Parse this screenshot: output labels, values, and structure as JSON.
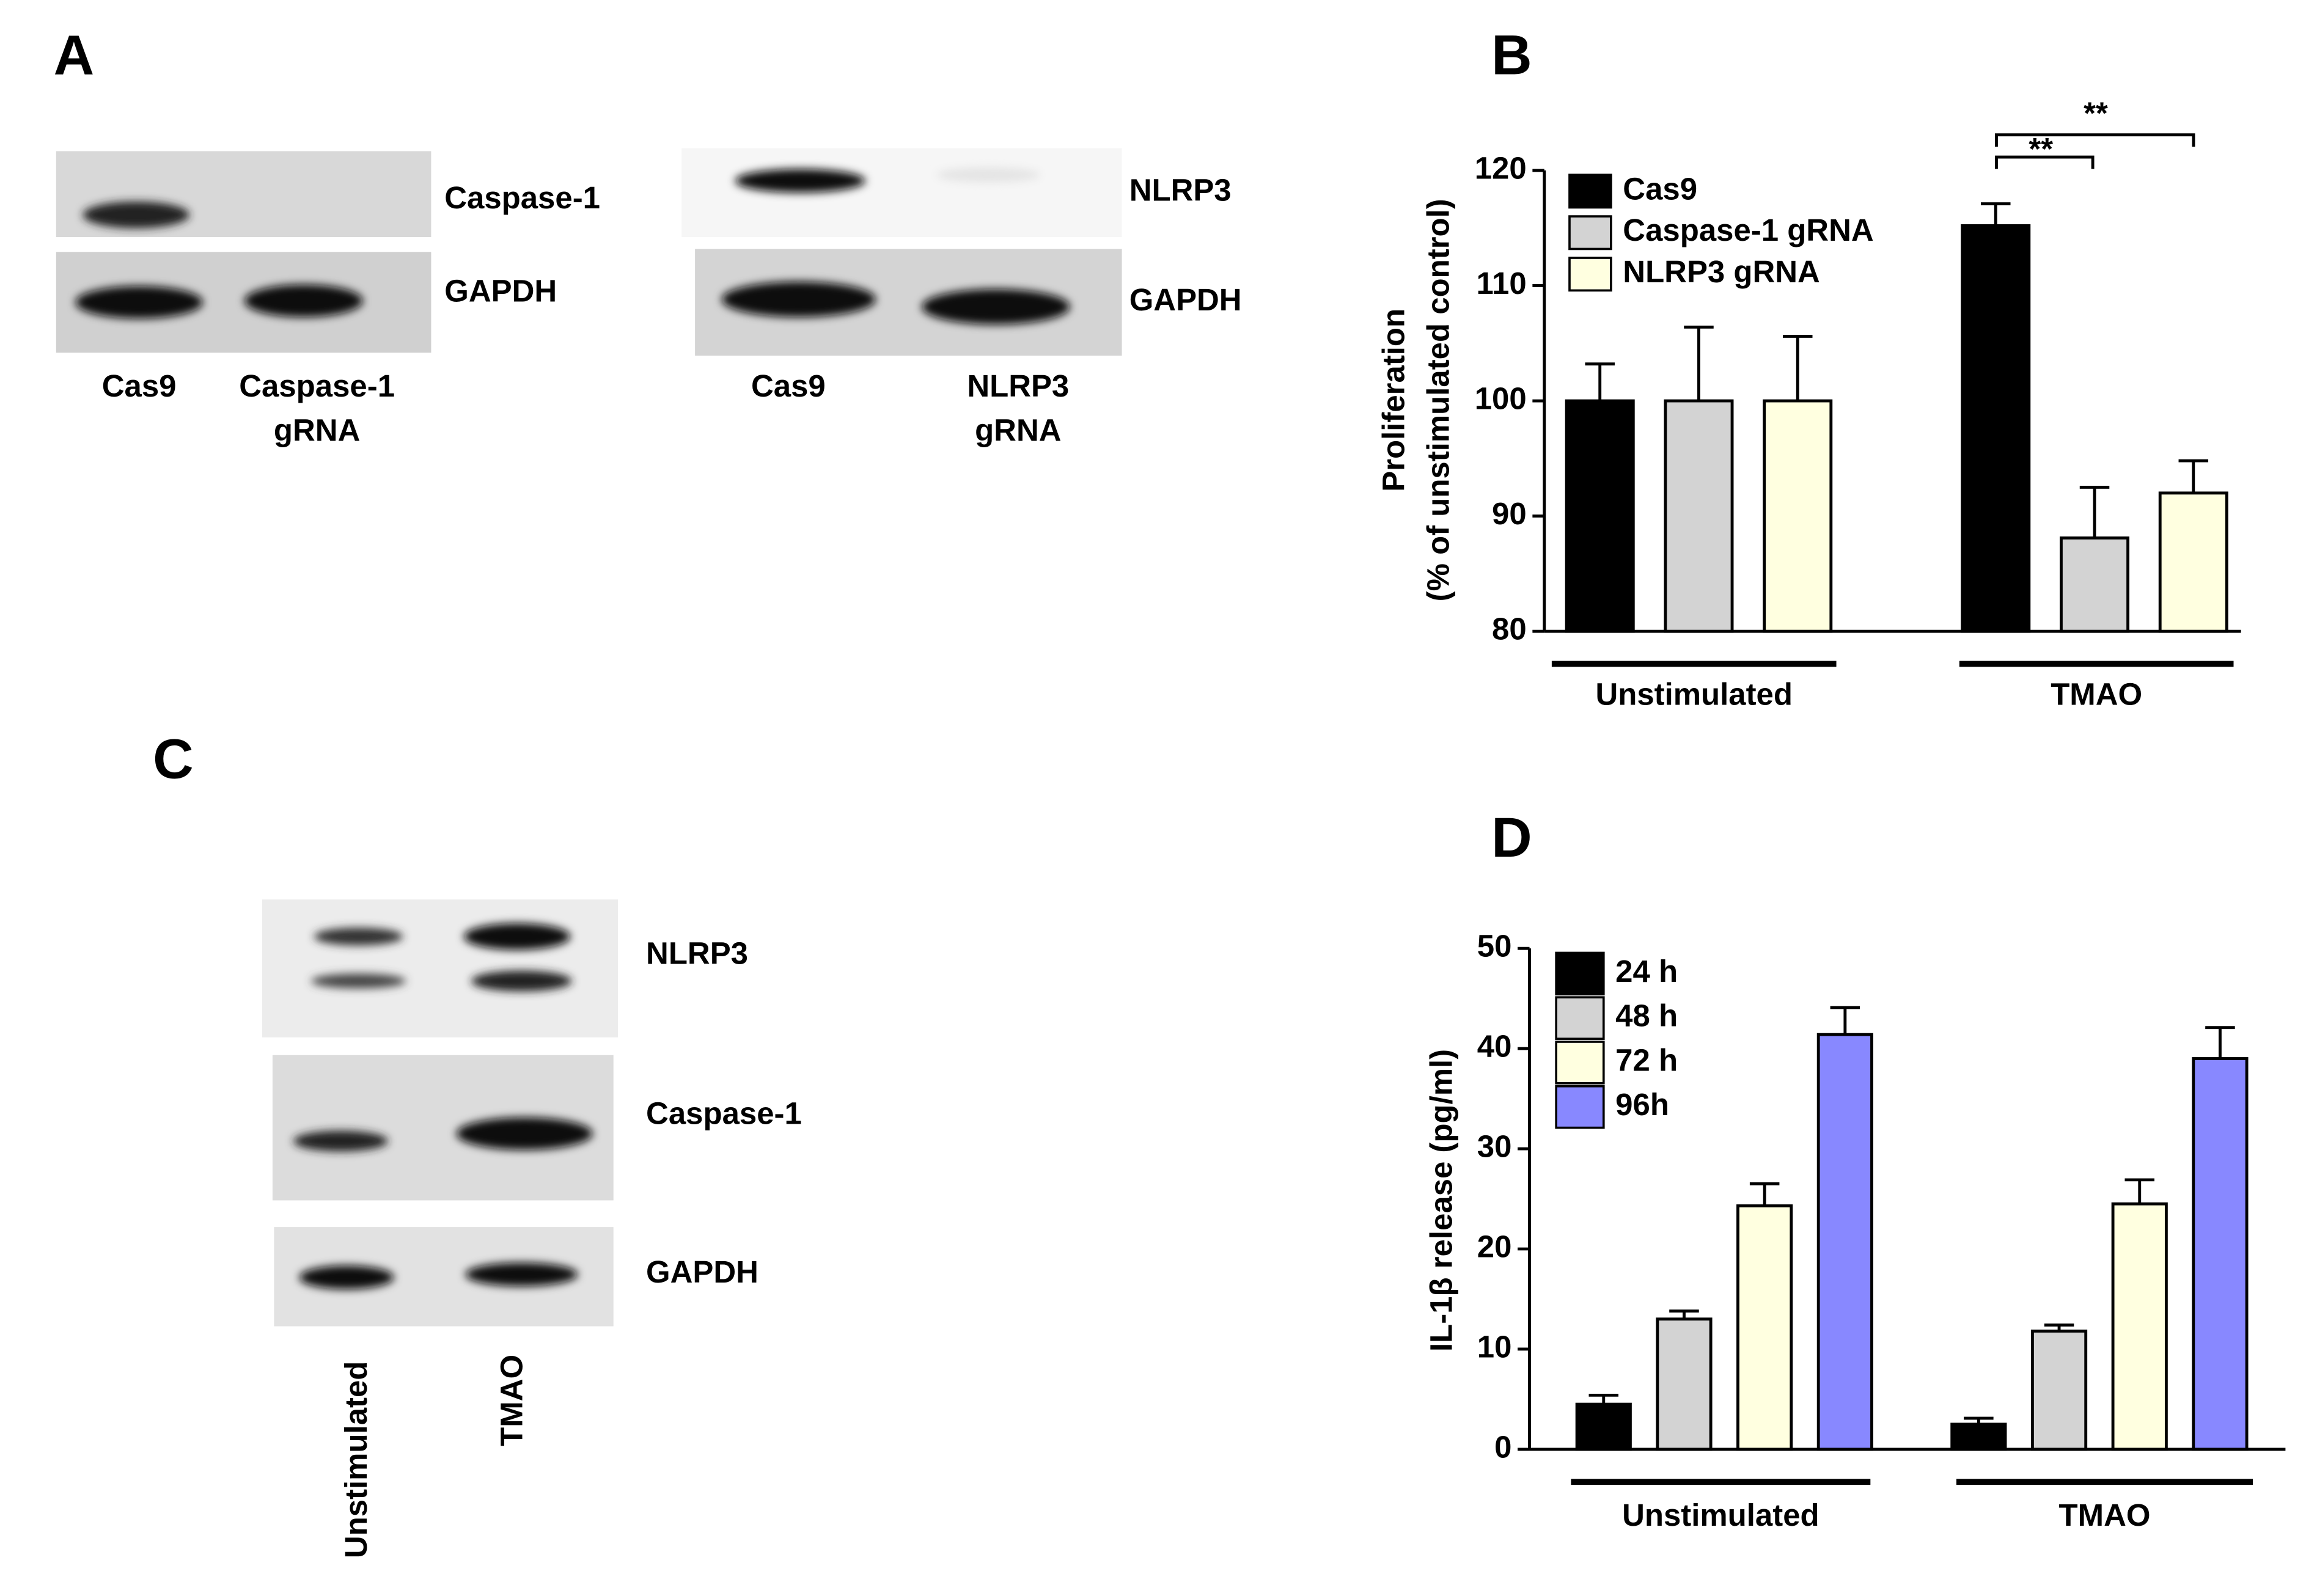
{
  "panel_labels": [
    "A",
    "B",
    "C",
    "D"
  ],
  "blots": [
    {
      "rows": [
        "Caspase-1",
        "GAPDH"
      ],
      "lanes": [
        [
          "Cas9"
        ],
        [
          "Caspase-1",
          "gRNA"
        ]
      ]
    },
    {
      "rows": [
        "NLRP3",
        "GAPDH"
      ],
      "lanes": [
        [
          "Cas9"
        ],
        [
          "NLRP3",
          "gRNA"
        ]
      ]
    },
    {
      "rows": [
        "NLRP3",
        "Caspase-1",
        "GAPDH"
      ],
      "lanes": [
        [
          "Unstimulated"
        ],
        [
          "TMAO"
        ]
      ]
    }
  ],
  "chart_data": [
    {
      "type": "bar",
      "y_label": [
        "Proliferation",
        "(% of unstimulated control)"
      ],
      "categories": [
        "Unstimulated",
        "TMAO"
      ],
      "series": [
        {
          "name": "Cas9",
          "color": "#000000",
          "values": [
            100,
            115.2
          ],
          "errors": [
            3.2,
            1.9
          ]
        },
        {
          "name": "Caspase-1 gRNA",
          "color": "#d3d3d3",
          "values": [
            100,
            88.1
          ],
          "errors": [
            6.4,
            4.4
          ]
        },
        {
          "name": "NLRP3 gRNA",
          "color": "#ffffe0",
          "values": [
            100,
            92
          ],
          "errors": [
            5.6,
            2.8
          ]
        }
      ],
      "ylim": [
        80,
        120
      ],
      "yticks": [
        80,
        90,
        100,
        110,
        120
      ],
      "legend": "upper left",
      "annotations": [
        "**",
        "**"
      ]
    },
    {
      "type": "bar",
      "y_label": [
        "IL-1β release (pg/ml)"
      ],
      "categories": [
        "Unstimulated",
        "TMAO"
      ],
      "series": [
        {
          "name": "24 h",
          "color": "#000000",
          "values": [
            4.5,
            2.5
          ],
          "errors": [
            0.9,
            0.6
          ]
        },
        {
          "name": "48 h",
          "color": "#d3d3d3",
          "values": [
            13,
            11.8
          ],
          "errors": [
            0.8,
            0.6
          ]
        },
        {
          "name": "72 h",
          "color": "#ffffe0",
          "values": [
            24.3,
            24.5
          ],
          "errors": [
            2.2,
            2.4
          ]
        },
        {
          "name": "96h",
          "color": "#8888ff",
          "values": [
            41.4,
            39
          ],
          "errors": [
            2.7,
            3.1
          ]
        }
      ],
      "ylim": [
        0,
        50
      ],
      "yticks": [
        0,
        10,
        20,
        30,
        40,
        50
      ],
      "legend": "upper left"
    }
  ]
}
